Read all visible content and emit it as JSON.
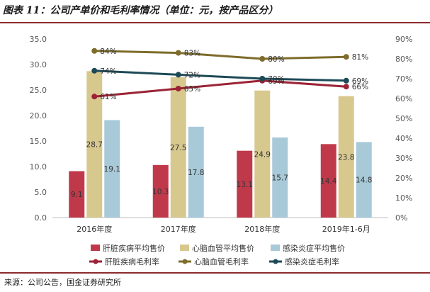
{
  "header": {
    "title": "图表 11：公司产单价和毛利率情况（单位：元，按产品区分）"
  },
  "footer": {
    "source": "来源：公司公告，国金证券研究所"
  },
  "colors": {
    "rule": "#8c2a2e",
    "bar1": "#c0394b",
    "bar2": "#d7c88e",
    "bar3": "#a8c9d8",
    "line1": "#9b2335",
    "line2": "#7d6c2a",
    "line3": "#1d4a57"
  },
  "chart_data": {
    "type": "bar",
    "categories": [
      "2016年度",
      "2017年度",
      "2018年度",
      "2019年1-6月"
    ],
    "y_left": {
      "min": 0,
      "max": 35,
      "step": 5,
      "tick_labels": [
        "0.0",
        "5.0",
        "10.0",
        "15.0",
        "20.0",
        "25.0",
        "30.0",
        "35.0"
      ]
    },
    "y_right": {
      "min": 0,
      "max": 90,
      "step": 10,
      "tick_labels": [
        "0%",
        "10%",
        "20%",
        "30%",
        "40%",
        "50%",
        "60%",
        "70%",
        "80%",
        "90%"
      ]
    },
    "bar_series": [
      {
        "name": "肝脏疾病平均售价",
        "values": [
          9.1,
          10.3,
          13.1,
          14.4
        ],
        "labels": [
          "9.1",
          "10.3",
          "13.1",
          "14.4"
        ]
      },
      {
        "name": "心脑血管平均售价",
        "values": [
          28.7,
          27.5,
          24.9,
          23.8
        ],
        "labels": [
          "28.7",
          "27.5",
          "24.9",
          "23.8"
        ]
      },
      {
        "name": "感染炎症平均售价",
        "values": [
          19.1,
          17.8,
          15.7,
          14.8
        ],
        "labels": [
          "19.1",
          "17.8",
          "15.7",
          "14.8"
        ]
      }
    ],
    "line_series": [
      {
        "name": "肝脏疾病毛利率",
        "values": [
          61,
          65,
          69,
          66
        ],
        "labels": [
          "61%",
          "65%",
          "69%",
          "66%"
        ]
      },
      {
        "name": "心脑血管毛利率",
        "values": [
          84,
          83,
          80,
          81
        ],
        "labels": [
          "84%",
          "83%",
          "80%",
          "81%"
        ]
      },
      {
        "name": "感染炎症毛利率",
        "values": [
          74,
          72,
          70,
          69
        ],
        "labels": [
          "74%",
          "72%",
          "70%",
          "69%"
        ]
      }
    ],
    "grid": false,
    "legend_position": "bottom"
  }
}
